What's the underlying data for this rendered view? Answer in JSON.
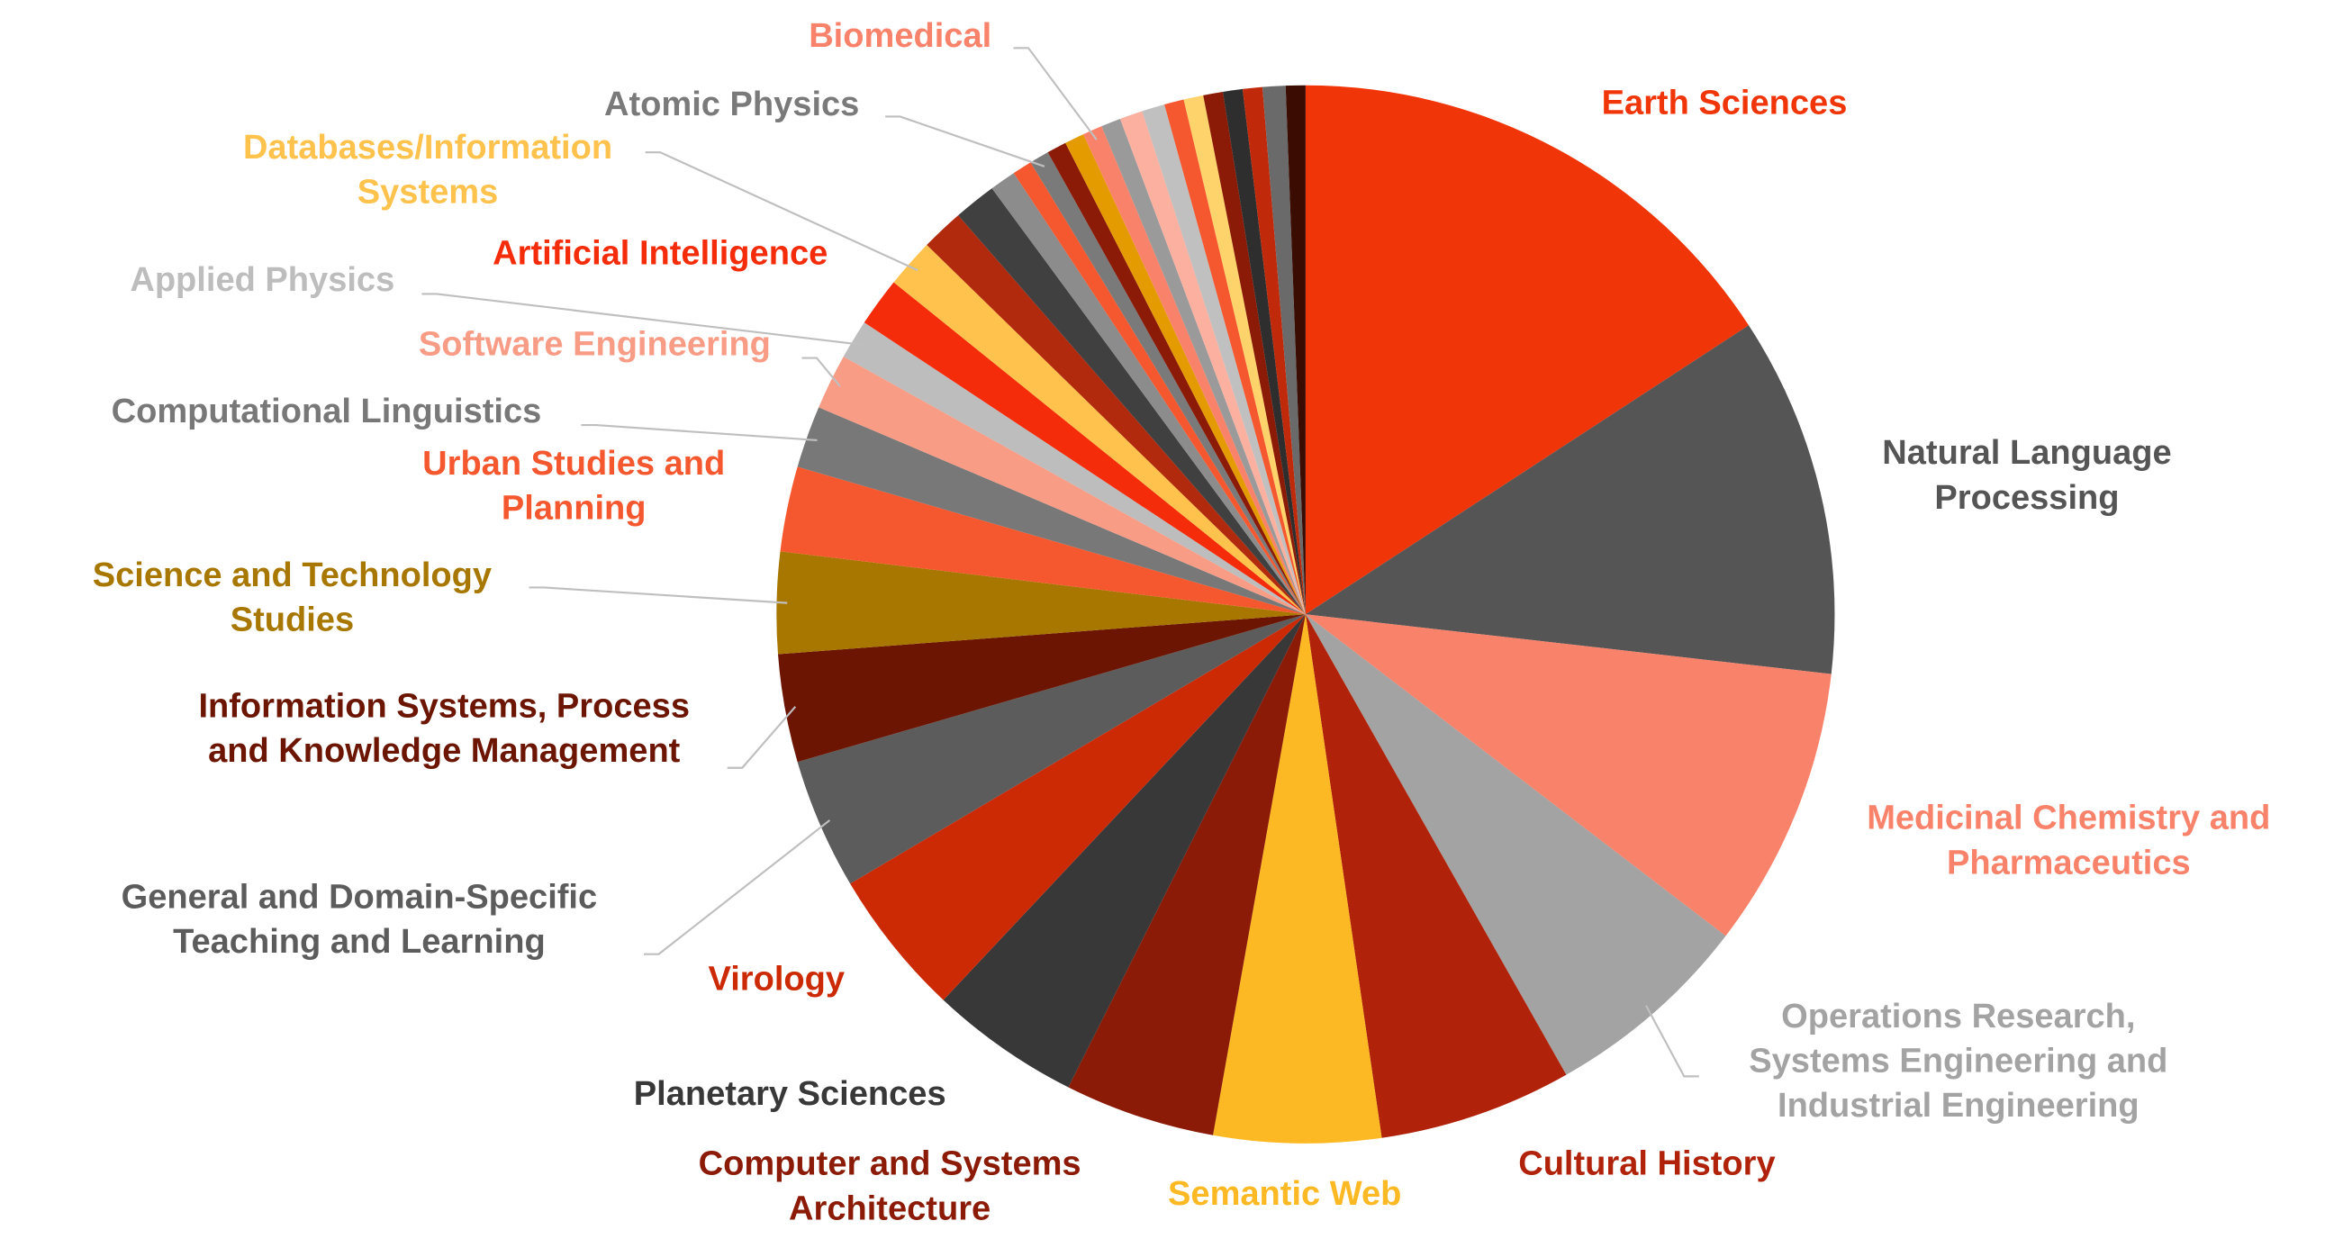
{
  "chart_data": {
    "type": "pie",
    "categories": [
      "Earth Sciences",
      "Natural Language Processing",
      "Medicinal Chemistry and Pharmaceutics",
      "Operations Research, Systems Engineering and Industrial Engineering",
      "Cultural History",
      "Semantic Web",
      "Computer and Systems Architecture",
      "Planetary Sciences",
      "Virology",
      "General and Domain-Specific Teaching and Learning",
      "Information Systems, Process and Knowledge Management",
      "Science and Technology Studies",
      "Urban Studies and Planning",
      "Computational Linguistics",
      "Software Engineering",
      "Applied Physics",
      "Artificial Intelligence",
      "Databases/Information Systems",
      null,
      null,
      null,
      null,
      "Atomic Physics",
      null,
      null,
      "Biomedical",
      null,
      null,
      null,
      null,
      null,
      null,
      null,
      null,
      null,
      null
    ],
    "values": [
      15.8,
      11.0,
      8.6,
      6.4,
      5.9,
      5.1,
      4.6,
      4.6,
      4.5,
      4.0,
      3.3,
      3.1,
      2.6,
      1.9,
      1.7,
      1.2,
      1.5,
      1.5,
      1.3,
      1.3,
      0.8,
      0.6,
      0.6,
      0.6,
      0.6,
      0.6,
      0.6,
      0.7,
      0.7,
      0.6,
      0.6,
      0.6,
      0.6,
      0.6,
      0.7,
      0.6
    ],
    "colors": [
      "#f03508",
      "#555555",
      "#f9826a",
      "#a3a3a3",
      "#b0230a",
      "#fdb924",
      "#8b1a07",
      "#383838",
      "#cc2a05",
      "#5c5c5c",
      "#6b1502",
      "#a87700",
      "#f5582f",
      "#787878",
      "#f99c86",
      "#bdbdbd",
      "#f52c0a",
      "#ffc24d",
      "#b22a0d",
      "#404040",
      "#8c8c8c",
      "#f5582f",
      "#7a7a7a",
      "#8b1a07",
      "#e39b00",
      "#f9826a",
      "#9a9a9a",
      "#fbb0a0",
      "#c0c0c0",
      "#f5582f",
      "#ffd36b",
      "#8b1a07",
      "#2e2e2e",
      "#c02a0a",
      "#6a6a6a",
      "#3a0c02"
    ]
  }
}
